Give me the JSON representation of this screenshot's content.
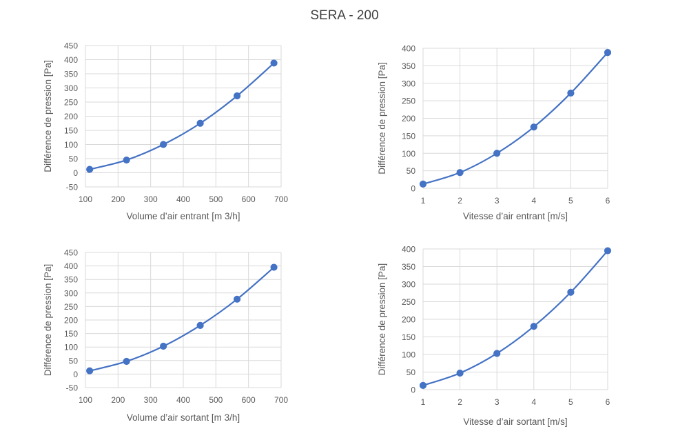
{
  "title": "SERA - 200",
  "colors": {
    "series": "#4472c4",
    "grid": "#d9d9d9",
    "text": "#595959"
  },
  "chart_data": [
    {
      "type": "line",
      "xlabel": "Volume d’air entrant [m 3/h]",
      "ylabel": "Différence de pression [Pa]",
      "xlim": [
        100,
        700
      ],
      "ylim": [
        -50,
        450
      ],
      "xticks": [
        100,
        200,
        300,
        400,
        500,
        600,
        700
      ],
      "yticks": [
        -50,
        0,
        50,
        100,
        150,
        200,
        250,
        300,
        350,
        400,
        450
      ],
      "grid": "both",
      "series": [
        {
          "x": [
            113,
            226,
            339,
            452,
            565,
            678
          ],
          "y": [
            12,
            45,
            100,
            175,
            272,
            388
          ]
        }
      ]
    },
    {
      "type": "line",
      "xlabel": "Vitesse d’air entrant [m/s]",
      "ylabel": "Différence de pression [Pa]",
      "xlim": [
        1,
        6
      ],
      "ylim": [
        0,
        400
      ],
      "xticks": [
        1,
        2,
        3,
        4,
        5,
        6
      ],
      "yticks": [
        0,
        50,
        100,
        150,
        200,
        250,
        300,
        350,
        400
      ],
      "grid": "both",
      "series": [
        {
          "x": [
            1,
            2,
            3,
            4,
            5,
            6
          ],
          "y": [
            12,
            45,
            100,
            175,
            272,
            388
          ]
        }
      ]
    },
    {
      "type": "line",
      "xlabel": "Volume d’air sortant [m 3/h]",
      "ylabel": "Différence de pression [Pa]",
      "xlim": [
        100,
        700
      ],
      "ylim": [
        -50,
        450
      ],
      "xticks": [
        100,
        200,
        300,
        400,
        500,
        600,
        700
      ],
      "yticks": [
        -50,
        0,
        50,
        100,
        150,
        200,
        250,
        300,
        350,
        400,
        450
      ],
      "grid": "both",
      "series": [
        {
          "x": [
            113,
            226,
            339,
            452,
            565,
            678
          ],
          "y": [
            12,
            47,
            103,
            180,
            277,
            395
          ]
        }
      ]
    },
    {
      "type": "line",
      "xlabel": "Vitesse d’air sortant [m/s]",
      "ylabel": "Différence de pression [Pa]",
      "xlim": [
        1,
        6
      ],
      "ylim": [
        0,
        400
      ],
      "xticks": [
        1,
        2,
        3,
        4,
        5,
        6
      ],
      "yticks": [
        0,
        50,
        100,
        150,
        200,
        250,
        300,
        350,
        400
      ],
      "grid": "both",
      "series": [
        {
          "x": [
            1,
            2,
            3,
            4,
            5,
            6
          ],
          "y": [
            12,
            47,
            103,
            180,
            277,
            395
          ]
        }
      ]
    }
  ]
}
